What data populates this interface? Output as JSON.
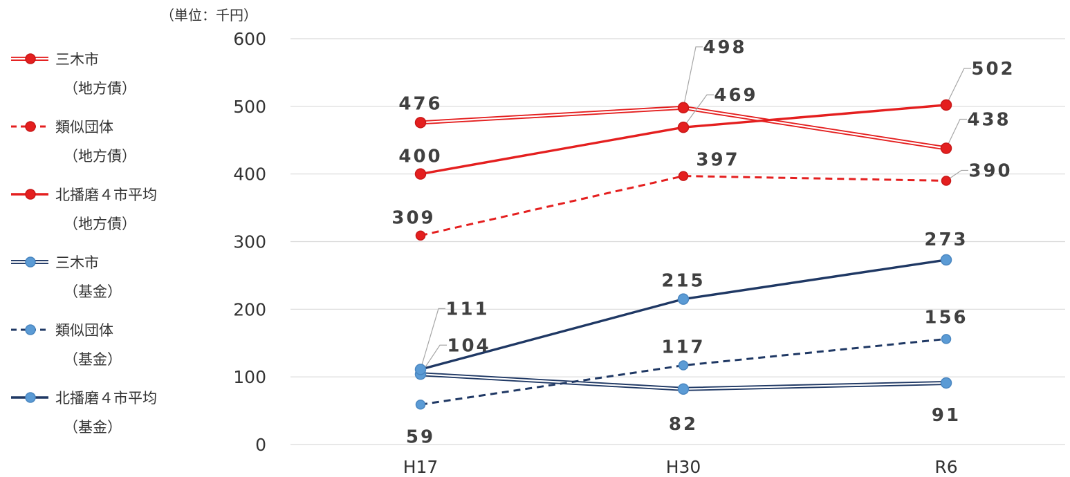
{
  "unit_label": "（単位：千円）",
  "colors": {
    "red": "#e41f1f",
    "navy": "#1f3864",
    "lightblue": "#5b9bd5",
    "grid": "#d9d9d9",
    "label": "#404040"
  },
  "chart_data": {
    "type": "line",
    "categories": [
      "H17",
      "H30",
      "R6"
    ],
    "ylim": [
      0,
      600
    ],
    "yticks": [
      "0",
      "100",
      "200",
      "300",
      "400",
      "500",
      "600"
    ],
    "grid": true,
    "legend_position": "left",
    "series": [
      {
        "name": "三木市",
        "sub": "（地方債）",
        "values": [
          476,
          498,
          438
        ],
        "style": "double",
        "line_color": "#e41f1f",
        "marker_color": "#e41f1f"
      },
      {
        "name": "類似団体",
        "sub": "（地方債）",
        "values": [
          309,
          397,
          390
        ],
        "style": "dashed",
        "line_color": "#e41f1f",
        "marker_color": "#e41f1f"
      },
      {
        "name": "北播磨４市平均",
        "sub": "（地方債）",
        "values": [
          400,
          469,
          502
        ],
        "style": "solid",
        "line_color": "#e41f1f",
        "marker_color": "#e41f1f"
      },
      {
        "name": "三木市",
        "sub": "（基金）",
        "values": [
          104,
          82,
          91
        ],
        "style": "double",
        "line_color": "#1f3864",
        "marker_color": "#5b9bd5"
      },
      {
        "name": "類似団体",
        "sub": "（基金）",
        "values": [
          59,
          117,
          156
        ],
        "style": "dashed",
        "line_color": "#1f3864",
        "marker_color": "#5b9bd5"
      },
      {
        "name": "北播磨４市平均",
        "sub": "（基金）",
        "values": [
          111,
          215,
          273
        ],
        "style": "solid",
        "line_color": "#1f3864",
        "marker_color": "#5b9bd5"
      }
    ],
    "data_labels": [
      {
        "series": 0,
        "point": 0,
        "text": "476"
      },
      {
        "series": 0,
        "point": 1,
        "text": "498"
      },
      {
        "series": 0,
        "point": 2,
        "text": "438"
      },
      {
        "series": 1,
        "point": 0,
        "text": "309"
      },
      {
        "series": 1,
        "point": 1,
        "text": "397"
      },
      {
        "series": 1,
        "point": 2,
        "text": "390"
      },
      {
        "series": 2,
        "point": 0,
        "text": "400"
      },
      {
        "series": 2,
        "point": 1,
        "text": "469"
      },
      {
        "series": 2,
        "point": 2,
        "text": "502"
      },
      {
        "series": 3,
        "point": 0,
        "text": "104"
      },
      {
        "series": 3,
        "point": 1,
        "text": "82"
      },
      {
        "series": 3,
        "point": 2,
        "text": "91"
      },
      {
        "series": 4,
        "point": 0,
        "text": "59"
      },
      {
        "series": 4,
        "point": 1,
        "text": "117"
      },
      {
        "series": 4,
        "point": 2,
        "text": "156"
      },
      {
        "series": 5,
        "point": 0,
        "text": "111"
      },
      {
        "series": 5,
        "point": 1,
        "text": "215"
      },
      {
        "series": 5,
        "point": 2,
        "text": "273"
      }
    ]
  }
}
